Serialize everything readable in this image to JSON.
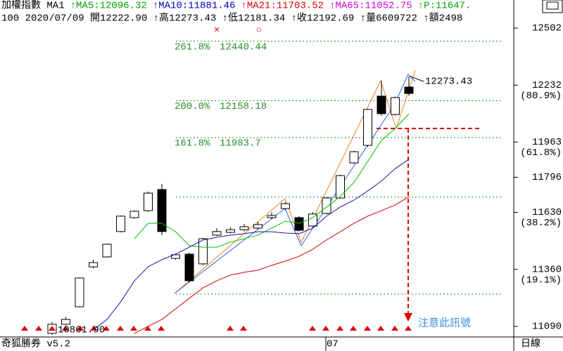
{
  "header": {
    "row1": [
      {
        "text": "加權指數 MA1",
        "color": "#000000"
      },
      {
        "text": "↑MA5:12096.32",
        "color": "#00a000"
      },
      {
        "text": "↑MA10:11881.46",
        "color": "#0000c0"
      },
      {
        "text": "↑MA21:11703.52",
        "color": "#e00000"
      },
      {
        "text": "↑MA65:11052.75",
        "color": "#d000d0"
      },
      {
        "text": "↑P:11647.",
        "color": "#00a000"
      }
    ],
    "row2": "100 2020/07/09 開12222.90 ↑高12273.43 ↑低12181.34 ↑收12192.69 ↑量6609722 ↑額2498"
  },
  "footer": {
    "left": "奇狐勝券 v5.2",
    "right": "日線"
  },
  "chart_data": {
    "type": "candlestick",
    "categories": [
      null,
      null,
      null,
      null,
      null,
      null,
      null,
      null,
      null,
      null,
      null,
      null,
      null,
      null,
      null,
      null,
      null,
      null,
      null,
      null,
      "07",
      null,
      null,
      null,
      null,
      null,
      null
    ],
    "candles": [
      {
        "open": 11057,
        "high": 11110,
        "low": 11050,
        "close": 11100
      },
      {
        "open": 11100,
        "high": 11135,
        "low": 11095,
        "close": 11123
      },
      {
        "open": 11183,
        "high": 11322,
        "low": 11180,
        "close": 11319
      },
      {
        "open": 11372,
        "high": 11405,
        "low": 11365,
        "close": 11392
      },
      {
        "open": 11419,
        "high": 11482,
        "low": 11415,
        "close": 11479
      },
      {
        "open": 11539,
        "high": 11615,
        "low": 11535,
        "close": 11612
      },
      {
        "open": 11605,
        "high": 11640,
        "low": 11600,
        "close": 11635
      },
      {
        "open": 11638,
        "high": 11728,
        "low": 11632,
        "close": 11721
      },
      {
        "open": 11738,
        "high": 11764,
        "low": 11522,
        "close": 11539
      },
      {
        "open": 11412,
        "high": 11435,
        "low": 11405,
        "close": 11429
      },
      {
        "open": 11432,
        "high": 11440,
        "low": 11300,
        "close": 11306
      },
      {
        "open": 11386,
        "high": 11510,
        "low": 11380,
        "close": 11505
      },
      {
        "open": 11522,
        "high": 11555,
        "low": 11518,
        "close": 11539
      },
      {
        "open": 11535,
        "high": 11560,
        "low": 11530,
        "close": 11548
      },
      {
        "open": 11548,
        "high": 11575,
        "low": 11540,
        "close": 11562
      },
      {
        "open": 11555,
        "high": 11585,
        "low": 11550,
        "close": 11572
      },
      {
        "open": 11605,
        "high": 11630,
        "low": 11598,
        "close": 11615
      },
      {
        "open": 11648,
        "high": 11678,
        "low": 11640,
        "close": 11671
      },
      {
        "open": 11605,
        "high": 11612,
        "low": 11540,
        "close": 11545
      },
      {
        "open": 11565,
        "high": 11630,
        "low": 11560,
        "close": 11622
      },
      {
        "open": 11625,
        "high": 11702,
        "low": 11620,
        "close": 11698
      },
      {
        "open": 11698,
        "high": 11808,
        "low": 11695,
        "close": 11804
      },
      {
        "open": 11864,
        "high": 11922,
        "low": 11860,
        "close": 11917
      },
      {
        "open": 11947,
        "high": 12120,
        "low": 11940,
        "close": 12117
      },
      {
        "open": 12180,
        "high": 12253,
        "low": 12087,
        "close": 12097
      },
      {
        "open": 12093,
        "high": 12178,
        "low": 12088,
        "close": 12173
      },
      {
        "open": 12222.9,
        "high": 12273.43,
        "low": 12181.34,
        "close": 12192.69
      }
    ],
    "series": [
      {
        "name": "MA5",
        "color": "#00c000",
        "values": [
          null,
          null,
          null,
          null,
          null,
          null,
          11505,
          11578,
          11578,
          11538,
          11472,
          11465,
          11465,
          11489,
          11505,
          11522,
          11555,
          11588,
          11578,
          11605,
          11655,
          11705,
          11771,
          11871,
          11970,
          12027,
          12096
        ]
      },
      {
        "name": "MA10",
        "color": "#1a1aa0",
        "values": [
          null,
          null,
          null,
          11073,
          11123,
          11206,
          11306,
          11372,
          11406,
          11432,
          11465,
          11499,
          11512,
          11522,
          11529,
          11538,
          11538,
          11532,
          11529,
          11555,
          11612,
          11655,
          11688,
          11731,
          11778,
          11837,
          11881
        ]
      },
      {
        "name": "MA21",
        "color": "#d00000",
        "values": [
          null,
          null,
          null,
          null,
          null,
          null,
          11057,
          11090,
          11123,
          11173,
          11223,
          11273,
          11306,
          11333,
          11346,
          11356,
          11379,
          11399,
          11422,
          11455,
          11499,
          11538,
          11578,
          11612,
          11638,
          11665,
          11704
        ]
      }
    ],
    "fib_levels": [
      {
        "label": "261.8%",
        "value": 12440.44
      },
      {
        "label": "200.0%",
        "value": 12158.18
      },
      {
        "label": "161.8%",
        "value": 11983.7
      },
      {
        "value": 11702
      },
      {
        "value": 11243
      }
    ],
    "ylim": [
      11040,
      12552
    ],
    "yticks": [
      12502,
      12232,
      11963,
      11796,
      11630,
      11360,
      11090
    ],
    "ratio_labels": [
      {
        "value": 12232,
        "label": "(80.9%)"
      },
      {
        "value": 11963,
        "label": "(61.8%)"
      },
      {
        "value": 11630,
        "label": "(38.2%)"
      },
      {
        "value": 11360,
        "label": "(19.1%)"
      }
    ],
    "high_label": "12273.43",
    "low_label": "10861.90",
    "signal_label": "注意此訊號",
    "marks": [
      "×",
      "○"
    ]
  }
}
